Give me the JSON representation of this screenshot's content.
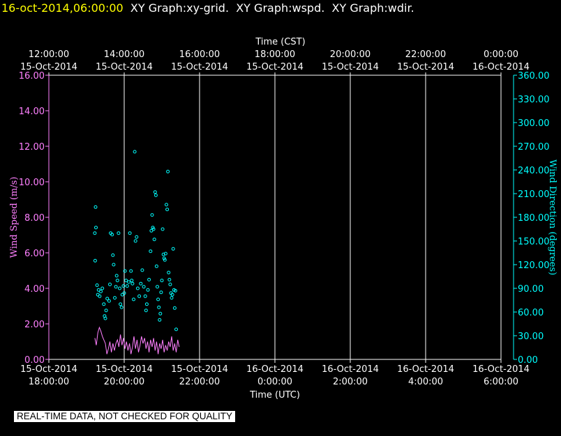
{
  "header": {
    "timestamp": "16-oct-2014,06:00:00",
    "graphs": [
      "XY Graph:xy-grid.",
      "XY Graph:wspd.",
      "XY Graph:wdir."
    ]
  },
  "disclaimer": "REAL-TIME DATA, NOT CHECKED FOR QUALITY",
  "colors": {
    "background": "#000000",
    "plot_border": "#ffffff",
    "grid": "#ffffff",
    "wind_speed": "#ff80ff",
    "wind_direction": "#00ffff",
    "timestamp": "#ffff00"
  },
  "chart_data": {
    "type": "line+scatter",
    "top_axis": {
      "title": "Time (CST)",
      "ticks": [
        {
          "time": "12:00:00",
          "date": "15-Oct-2014"
        },
        {
          "time": "14:00:00",
          "date": "15-Oct-2014"
        },
        {
          "time": "16:00:00",
          "date": "15-Oct-2014"
        },
        {
          "time": "18:00:00",
          "date": "15-Oct-2014"
        },
        {
          "time": "20:00:00",
          "date": "15-Oct-2014"
        },
        {
          "time": "22:00:00",
          "date": "15-Oct-2014"
        },
        {
          "time": "0:00:00",
          "date": "16-Oct-2014"
        }
      ]
    },
    "bottom_axis": {
      "title": "Time (UTC)",
      "ticks": [
        {
          "date": "15-Oct-2014",
          "time": "18:00:00"
        },
        {
          "date": "15-Oct-2014",
          "time": "20:00:00"
        },
        {
          "date": "15-Oct-2014",
          "time": "22:00:00"
        },
        {
          "date": "16-Oct-2014",
          "time": "0:00:00"
        },
        {
          "date": "16-Oct-2014",
          "time": "2:00:00"
        },
        {
          "date": "16-Oct-2014",
          "time": "4:00:00"
        },
        {
          "date": "16-Oct-2014",
          "time": "6:00:00"
        }
      ],
      "range_hours_utc": [
        18,
        30
      ]
    },
    "left_axis": {
      "title": "Wind Speed (m/s)",
      "range": [
        0,
        16
      ],
      "ticks": [
        "0.00",
        "2.00",
        "4.00",
        "6.00",
        "8.00",
        "10.00",
        "12.00",
        "14.00",
        "16.00"
      ]
    },
    "right_axis": {
      "title": "Wind Direction (degrees)",
      "range": [
        0,
        360
      ],
      "ticks": [
        "0.00",
        "30.00",
        "60.00",
        "90.00",
        "120.00",
        "150.00",
        "180.00",
        "210.00",
        "240.00",
        "270.00",
        "300.00",
        "330.00",
        "360.00"
      ]
    },
    "grid": "vertical",
    "series": [
      {
        "type": "line",
        "axis": "left",
        "color": "#ff80ff",
        "x_hours_utc": [
          19.22,
          19.26,
          19.3,
          19.34,
          19.38,
          19.42,
          19.46,
          19.5,
          19.54,
          19.58,
          19.62,
          19.66,
          19.7,
          19.74,
          19.78,
          19.82,
          19.86,
          19.9,
          19.94,
          19.98,
          20.02,
          20.06,
          20.1,
          20.14,
          20.18,
          20.22,
          20.26,
          20.3,
          20.34,
          20.38,
          20.42,
          20.46,
          20.5,
          20.54,
          20.58,
          20.62,
          20.66,
          20.7,
          20.74,
          20.78,
          20.82,
          20.86,
          20.9,
          20.94,
          20.98,
          21.02,
          21.06,
          21.1,
          21.14,
          21.18,
          21.22,
          21.26,
          21.3,
          21.34,
          21.38,
          21.42,
          21.46
        ],
        "y": [
          1.2,
          0.8,
          1.5,
          1.8,
          1.6,
          1.3,
          1.1,
          0.9,
          0.3,
          0.6,
          1.0,
          0.4,
          0.9,
          0.5,
          0.9,
          1.1,
          0.7,
          1.4,
          0.8,
          1.2,
          0.6,
          1.0,
          0.5,
          0.9,
          0.3,
          0.7,
          1.3,
          0.6,
          1.1,
          0.4,
          0.8,
          1.3,
          0.9,
          1.2,
          0.6,
          1.0,
          0.4,
          1.1,
          0.7,
          1.2,
          0.5,
          1.0,
          0.3,
          0.9,
          0.6,
          1.1,
          0.4,
          0.8,
          0.5,
          1.0,
          0.7,
          1.3,
          0.5,
          0.9,
          0.4,
          1.1,
          0.7
        ]
      },
      {
        "type": "scatter",
        "axis": "right",
        "color": "#00ffff",
        "points": [
          [
            19.22,
            160
          ],
          [
            19.24,
            193
          ],
          [
            19.25,
            167
          ],
          [
            19.23,
            125
          ],
          [
            19.28,
            94
          ],
          [
            19.32,
            88
          ],
          [
            19.35,
            80
          ],
          [
            19.38,
            86
          ],
          [
            19.3,
            82
          ],
          [
            19.42,
            90
          ],
          [
            19.46,
            70
          ],
          [
            19.48,
            55
          ],
          [
            19.5,
            52
          ],
          [
            19.52,
            62
          ],
          [
            19.55,
            77
          ],
          [
            19.6,
            74
          ],
          [
            19.62,
            95
          ],
          [
            19.64,
            160
          ],
          [
            19.68,
            158
          ],
          [
            19.7,
            132
          ],
          [
            19.72,
            120
          ],
          [
            19.75,
            78
          ],
          [
            19.78,
            92
          ],
          [
            19.8,
            106
          ],
          [
            19.82,
            100
          ],
          [
            19.85,
            160
          ],
          [
            19.88,
            90
          ],
          [
            19.9,
            70
          ],
          [
            19.93,
            66
          ],
          [
            19.95,
            82
          ],
          [
            19.98,
            93
          ],
          [
            20.0,
            84
          ],
          [
            20.02,
            112
          ],
          [
            20.05,
            100
          ],
          [
            20.08,
            93
          ],
          [
            20.12,
            98
          ],
          [
            20.15,
            160
          ],
          [
            20.18,
            112
          ],
          [
            20.2,
            100
          ],
          [
            20.22,
            96
          ],
          [
            20.25,
            76
          ],
          [
            20.28,
            263
          ],
          [
            20.3,
            150
          ],
          [
            20.33,
            155
          ],
          [
            20.36,
            90
          ],
          [
            20.4,
            80
          ],
          [
            20.44,
            96
          ],
          [
            20.48,
            113
          ],
          [
            20.52,
            92
          ],
          [
            20.56,
            80
          ],
          [
            20.58,
            62
          ],
          [
            20.6,
            70
          ],
          [
            20.63,
            88
          ],
          [
            20.66,
            101
          ],
          [
            20.7,
            137
          ],
          [
            20.72,
            163
          ],
          [
            20.74,
            183
          ],
          [
            20.76,
            167
          ],
          [
            20.78,
            165
          ],
          [
            20.8,
            152
          ],
          [
            20.82,
            212
          ],
          [
            20.84,
            208
          ],
          [
            20.86,
            118
          ],
          [
            20.88,
            92
          ],
          [
            20.9,
            76
          ],
          [
            20.92,
            66
          ],
          [
            20.94,
            50
          ],
          [
            20.96,
            58
          ],
          [
            20.98,
            85
          ],
          [
            21.0,
            100
          ],
          [
            21.02,
            165
          ],
          [
            21.04,
            133
          ],
          [
            21.06,
            128
          ],
          [
            21.08,
            126
          ],
          [
            21.1,
            134
          ],
          [
            21.12,
            196
          ],
          [
            21.14,
            190
          ],
          [
            21.16,
            238
          ],
          [
            21.18,
            110
          ],
          [
            21.2,
            101
          ],
          [
            21.22,
            95
          ],
          [
            21.24,
            84
          ],
          [
            21.26,
            78
          ],
          [
            21.28,
            82
          ],
          [
            21.3,
            140
          ],
          [
            21.32,
            88
          ],
          [
            21.34,
            65
          ],
          [
            21.36,
            87
          ],
          [
            21.38,
            38
          ]
        ]
      }
    ]
  }
}
